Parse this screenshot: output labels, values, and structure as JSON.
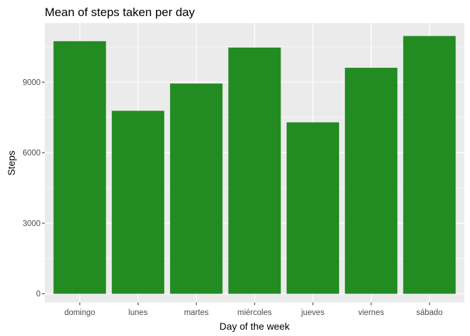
{
  "chart_data": {
    "type": "bar",
    "title": "Mean of steps taken per day",
    "xlabel": "Day of the week",
    "ylabel": "Steps",
    "categories": [
      "domingo",
      "lunes",
      "martes",
      "miércoles",
      "jueves",
      "viernes",
      "sábado"
    ],
    "values": [
      10740,
      7780,
      8940,
      10470,
      7290,
      9610,
      10960
    ],
    "ylim": [
      -367,
      11510
    ],
    "yticks": [
      0,
      3000,
      6000,
      9000
    ],
    "ytick_labels": [
      "0",
      "3000",
      "6000",
      "9000"
    ],
    "grid": true,
    "legend": "none",
    "colors": {
      "bar": "#228B22",
      "panel": "#EBEBEB",
      "grid_major": "#FFFFFF",
      "tick_text": "#4D4D4D",
      "tick_mark": "#333333"
    }
  }
}
